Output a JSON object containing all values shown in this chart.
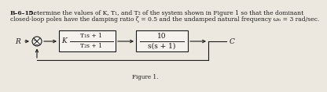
{
  "title_bold": "B–6–15.",
  "title_normal": " Determine the values of K, T₁, and T₂ of the system shown in Figure 1 so that the dominant",
  "title_line2": "closed-loop poles have the damping ratio ζ = 0.5 and the undamped natural frequency ωₙ = 3 rad/sec.",
  "block1_K": "K",
  "block1_num": "T₁s + 1",
  "block1_den": "T₂s + 1",
  "block2_num": "10",
  "block2_den": "s(s + 1)",
  "input_label": "R",
  "output_label": "C",
  "figure_label": "Figure 1.",
  "bg_color": "#ede8df",
  "text_color": "#1a1a1a",
  "line_color": "#1a1a1a",
  "box_facecolor": "#f5f2ee",
  "fontsize_title": 5.5,
  "fontsize_diagram": 6.5,
  "fontsize_figure": 5.2
}
